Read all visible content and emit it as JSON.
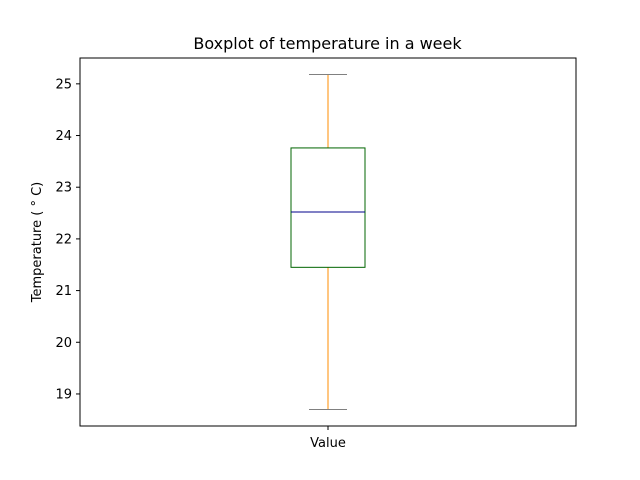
{
  "chart_data": {
    "type": "box",
    "title": "Boxplot of temperature in a week",
    "xlabel": "",
    "ylabel": "Temperature ($^\\circ$C)",
    "ylabel_display": "Temperature ( ° C)",
    "categories": [
      "Value"
    ],
    "boxes": [
      {
        "category": "Value",
        "whisker_low": 18.7,
        "q1": 21.45,
        "median": 22.52,
        "q3": 23.76,
        "whisker_high": 25.18
      }
    ],
    "ylim": [
      18.38,
      25.5
    ],
    "yticks": [
      19,
      20,
      21,
      22,
      23,
      24,
      25
    ],
    "grid": false,
    "colors": {
      "box": "#006400",
      "median": "#00008b",
      "whisker": "#ff8c00",
      "cap": "#808080",
      "axes": "#000000"
    }
  }
}
